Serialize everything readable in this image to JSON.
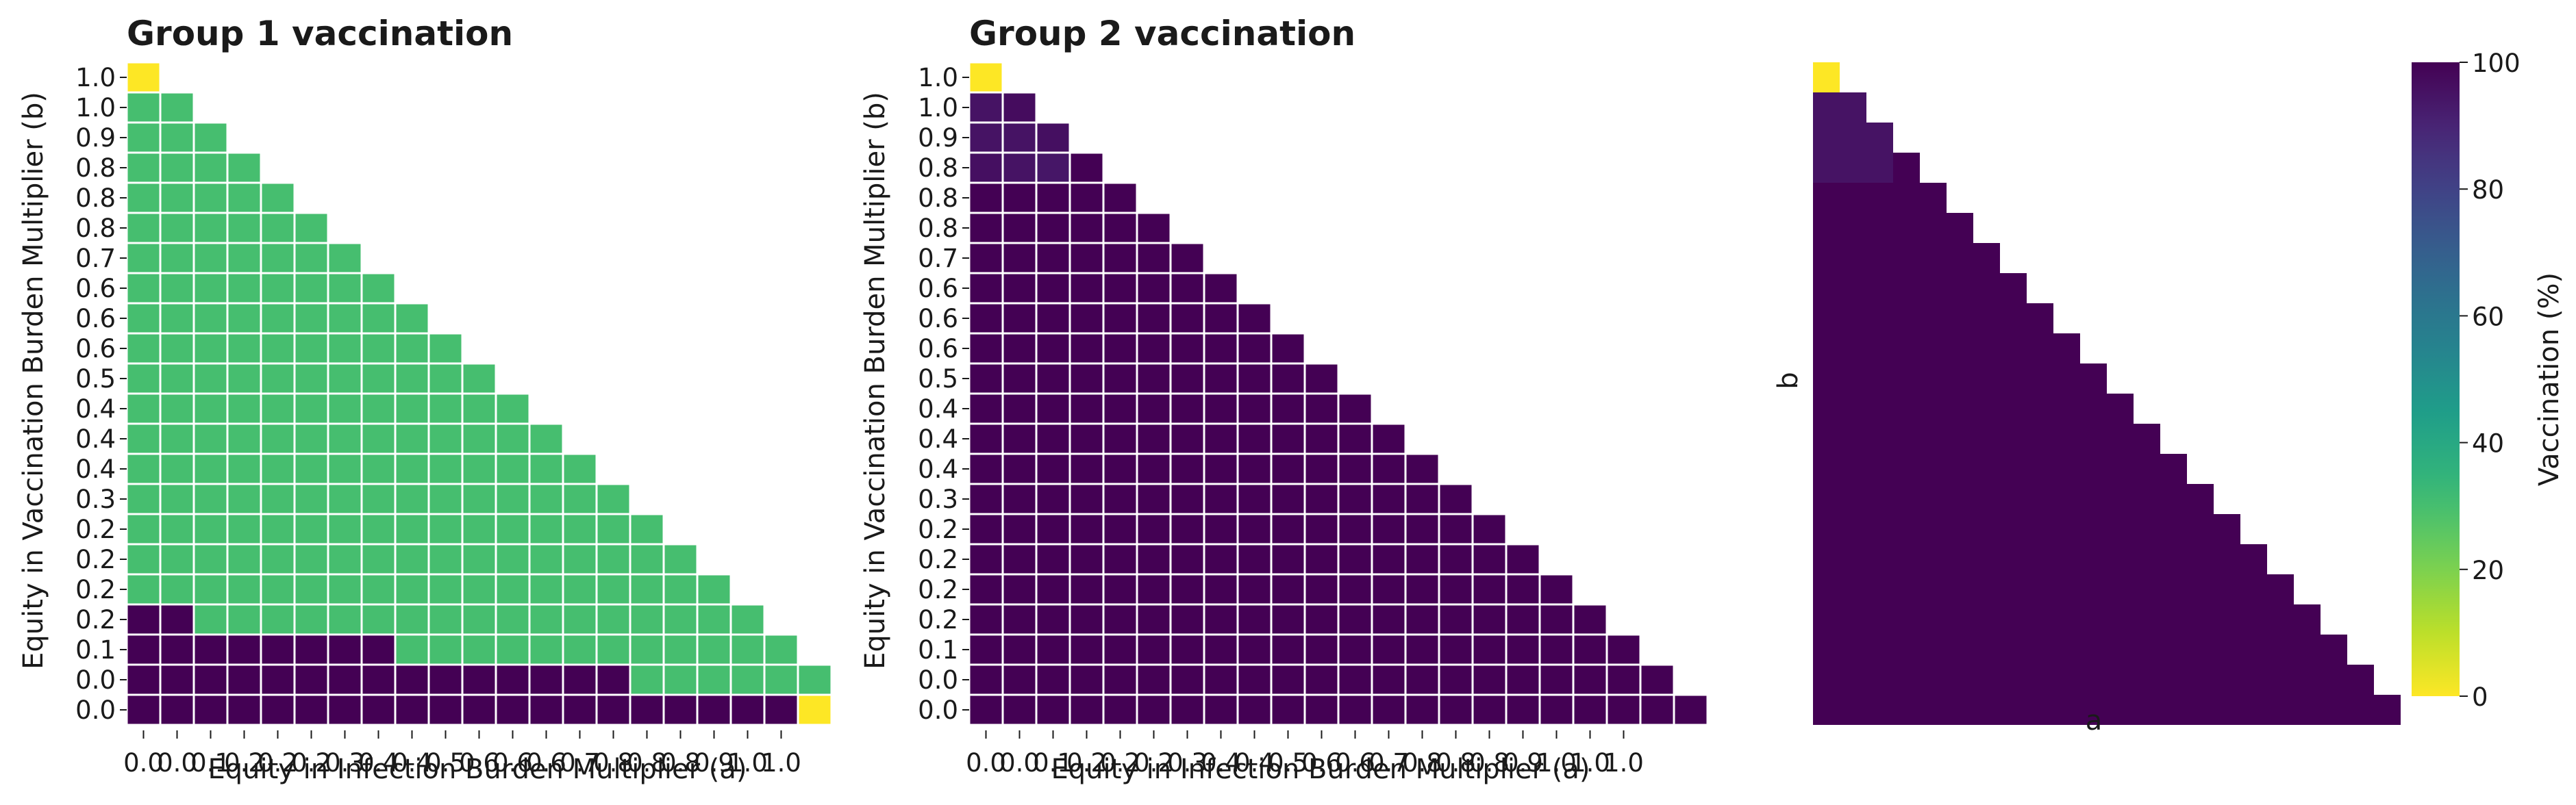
{
  "colors": {
    "viridis": [
      "#440154",
      "#482878",
      "#3e4989",
      "#31688e",
      "#26828e",
      "#1f9e89",
      "#35b779",
      "#6ece58",
      "#b5de2b",
      "#fde725"
    ],
    "grid_line": "#ffffff",
    "background": "#ffffff"
  },
  "chart_data": [
    {
      "type": "heatmap",
      "title": "Group 1 vaccination",
      "xlabel": "Equity in Infection Burden Multiplier (a)",
      "ylabel": "Equity in Vaccination Burden Multiplier (b)",
      "x_tick_labels": [
        "0.0",
        "0.0",
        "0.1",
        "0.2",
        "0.2",
        "0.2",
        "0.3",
        "0.4",
        "0.4",
        "0.5",
        "0.6",
        "0.6",
        "0.6",
        "0.7",
        "0.8",
        "0.8",
        "0.8",
        "0.9",
        "1.0",
        "1.0"
      ],
      "y_tick_labels": [
        "1.0",
        "1.0",
        "0.9",
        "0.8",
        "0.8",
        "0.8",
        "0.7",
        "0.6",
        "0.6",
        "0.6",
        "0.5",
        "0.4",
        "0.4",
        "0.4",
        "0.3",
        "0.2",
        "0.2",
        "0.2",
        "0.2",
        "0.1",
        "0.0",
        "0.0"
      ],
      "color_scale": {
        "min": 0,
        "max": 100,
        "colormap": "viridis_r"
      },
      "cells": [
        {
          "row": 0,
          "col": 0,
          "value": 0
        },
        {
          "row": 21,
          "col": 20,
          "value": 0
        }
      ],
      "rules": {
        "row_lengths": [
          1,
          2,
          3,
          4,
          5,
          6,
          7,
          8,
          9,
          10,
          11,
          12,
          13,
          14,
          15,
          16,
          17,
          18,
          19,
          20,
          21,
          21
        ],
        "default_value": 30,
        "high_value": 100,
        "high_cells": [
          {
            "row": 18,
            "cols": [
              0,
              1
            ]
          },
          {
            "row": 19,
            "cols": [
              0,
              7
            ]
          },
          {
            "row": 20,
            "cols": [
              0,
              14
            ]
          },
          {
            "row": 21,
            "cols": [
              0,
              19
            ]
          }
        ]
      }
    },
    {
      "type": "heatmap",
      "title": "Group 2 vaccination",
      "xlabel": "Equity in Infection Burden Multiplier (a)",
      "ylabel": "Equity in Vaccination Burden Multiplier (b)",
      "x_tick_labels": [
        "0.0",
        "0.0",
        "0.1",
        "0.2",
        "0.2",
        "0.2",
        "0.3",
        "0.4",
        "0.4",
        "0.5",
        "0.6",
        "0.6",
        "0.7",
        "0.8",
        "0.8",
        "0.8",
        "0.9",
        "1.0",
        "1.0",
        "1.0"
      ],
      "y_tick_labels": [
        "1.0",
        "1.0",
        "0.9",
        "0.8",
        "0.8",
        "0.8",
        "0.7",
        "0.6",
        "0.6",
        "0.6",
        "0.5",
        "0.4",
        "0.4",
        "0.4",
        "0.3",
        "0.2",
        "0.2",
        "0.2",
        "0.2",
        "0.1",
        "0.0",
        "0.0"
      ],
      "color_scale": {
        "min": 0,
        "max": 100,
        "colormap": "viridis_r"
      },
      "cells": [
        {
          "row": 0,
          "col": 0,
          "value": 0
        },
        {
          "row": 1,
          "col": 0,
          "value": 95
        },
        {
          "row": 1,
          "col": 1,
          "value": 97
        },
        {
          "row": 2,
          "col": 0,
          "value": 95
        },
        {
          "row": 2,
          "col": 1,
          "value": 95
        },
        {
          "row": 2,
          "col": 2,
          "value": 96
        },
        {
          "row": 3,
          "col": 0,
          "value": 96
        },
        {
          "row": 3,
          "col": 1,
          "value": 95
        },
        {
          "row": 3,
          "col": 2,
          "value": 94
        }
      ],
      "rules": {
        "row_lengths": [
          1,
          2,
          3,
          4,
          5,
          6,
          7,
          8,
          9,
          10,
          11,
          12,
          13,
          14,
          15,
          16,
          17,
          18,
          19,
          20,
          21,
          22
        ],
        "default_value": 100
      }
    },
    {
      "type": "heatmap",
      "title": "",
      "xlabel": "a",
      "ylabel": "b",
      "colorbar": {
        "label": "Vaccination (%)",
        "ticks": [
          0,
          20,
          40,
          60,
          80,
          100
        ]
      },
      "color_scale": {
        "min": 0,
        "max": 100,
        "colormap": "viridis_r"
      },
      "cells": [
        {
          "row": 0,
          "col": 0,
          "value": 0
        },
        {
          "row": 1,
          "col": 0,
          "value": 95
        },
        {
          "row": 1,
          "col": 1,
          "value": 95
        },
        {
          "row": 2,
          "col": 0,
          "value": 95
        },
        {
          "row": 2,
          "col": 1,
          "value": 95
        },
        {
          "row": 2,
          "col": 2,
          "value": 95
        },
        {
          "row": 3,
          "col": 0,
          "value": 95
        },
        {
          "row": 3,
          "col": 1,
          "value": 95
        },
        {
          "row": 3,
          "col": 2,
          "value": 95
        }
      ],
      "rules": {
        "row_lengths": [
          1,
          2,
          3,
          4,
          5,
          6,
          7,
          8,
          9,
          10,
          11,
          12,
          13,
          14,
          15,
          16,
          17,
          18,
          19,
          20,
          21,
          22
        ],
        "default_value": 100
      }
    }
  ]
}
